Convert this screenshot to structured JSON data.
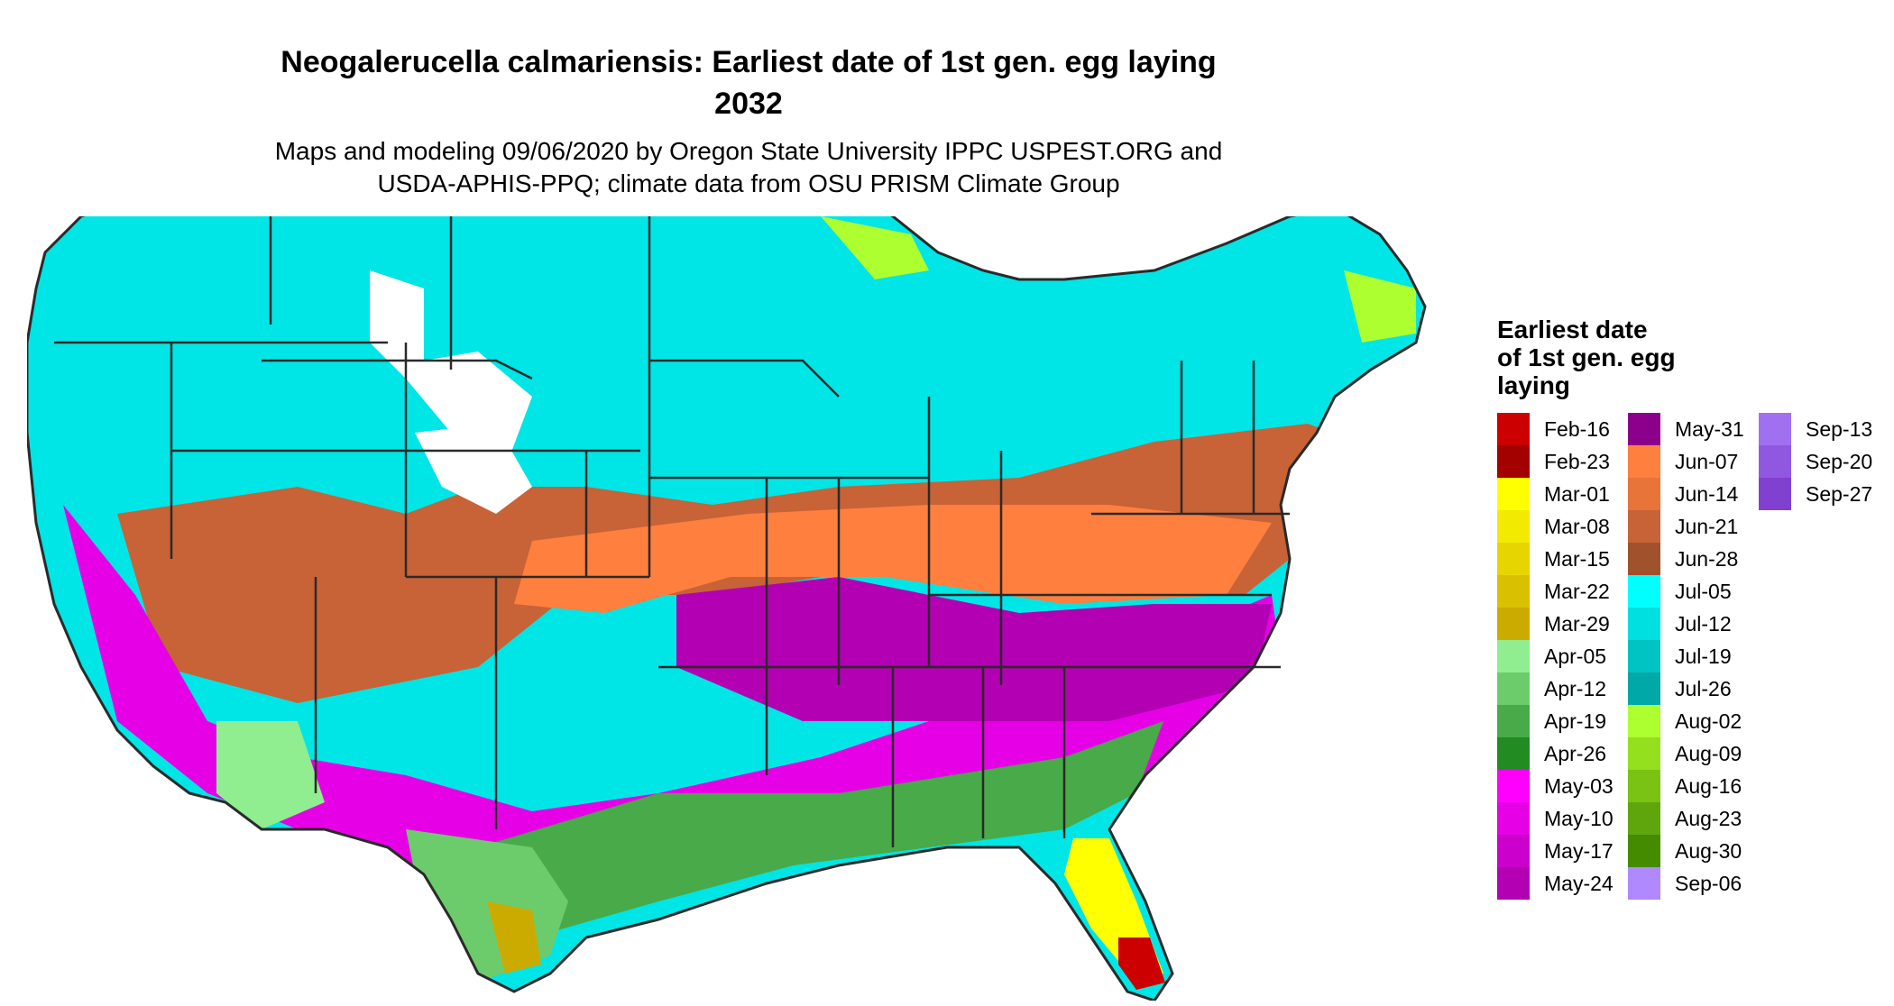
{
  "title_line1": "Neogalerucella calmariensis: Earliest date of 1st gen. egg laying",
  "title_line2": "2032",
  "subtitle_line1": "Maps and modeling 09/06/2020 by Oregon State University IPPC USPEST.ORG and",
  "subtitle_line2": "USDA-APHIS-PPQ; climate data from OSU PRISM Climate Group",
  "legend": {
    "title_lines": [
      "Earliest date",
      "of 1st gen. egg",
      "laying"
    ],
    "items": [
      {
        "label": "Feb-16",
        "color": "#cc0000"
      },
      {
        "label": "Feb-23",
        "color": "#a30000"
      },
      {
        "label": "Mar-01",
        "color": "#ffff00"
      },
      {
        "label": "Mar-08",
        "color": "#f2ea00"
      },
      {
        "label": "Mar-15",
        "color": "#e6d500"
      },
      {
        "label": "Mar-22",
        "color": "#d9c000"
      },
      {
        "label": "Mar-29",
        "color": "#ccab00"
      },
      {
        "label": "Apr-05",
        "color": "#90ee90"
      },
      {
        "label": "Apr-12",
        "color": "#6ccc6c"
      },
      {
        "label": "Apr-19",
        "color": "#48aa48"
      },
      {
        "label": "Apr-26",
        "color": "#228b22"
      },
      {
        "label": "May-03",
        "color": "#ff00ff"
      },
      {
        "label": "May-10",
        "color": "#e600e6"
      },
      {
        "label": "May-17",
        "color": "#cc00cc"
      },
      {
        "label": "May-24",
        "color": "#b300b3"
      },
      {
        "label": "May-31",
        "color": "#8b008b"
      },
      {
        "label": "Jun-07",
        "color": "#ff7f3f"
      },
      {
        "label": "Jun-14",
        "color": "#e8743a"
      },
      {
        "label": "Jun-21",
        "color": "#c86237"
      },
      {
        "label": "Jun-28",
        "color": "#a0522d"
      },
      {
        "label": "Jul-05",
        "color": "#00ffff"
      },
      {
        "label": "Jul-12",
        "color": "#00e0e0"
      },
      {
        "label": "Jul-19",
        "color": "#00c4c4"
      },
      {
        "label": "Jul-26",
        "color": "#00a8a8"
      },
      {
        "label": "Aug-02",
        "color": "#adff2f"
      },
      {
        "label": "Aug-09",
        "color": "#94e01e"
      },
      {
        "label": "Aug-16",
        "color": "#7ac314"
      },
      {
        "label": "Aug-23",
        "color": "#5fa60d"
      },
      {
        "label": "Aug-30",
        "color": "#458b00"
      },
      {
        "label": "Sep-06",
        "color": "#b088ff"
      },
      {
        "label": "Sep-13",
        "color": "#a070f0"
      },
      {
        "label": "Sep-20",
        "color": "#9058e0"
      },
      {
        "label": "Sep-27",
        "color": "#8040d0"
      }
    ]
  },
  "map_colors": {
    "cyan": "#00e5e5",
    "brown": "#c86237",
    "orange": "#ff7f3f",
    "magenta": "#e600e6",
    "purple": "#b300b3",
    "green": "#48aa48",
    "light_green": "#6ccc6c",
    "pale_green": "#90ee90",
    "yellow": "#ffff00",
    "gold": "#ccab00",
    "red": "#cc0000",
    "lime": "#adff2f",
    "white": "#ffffff",
    "border": "#2a2a2a"
  }
}
